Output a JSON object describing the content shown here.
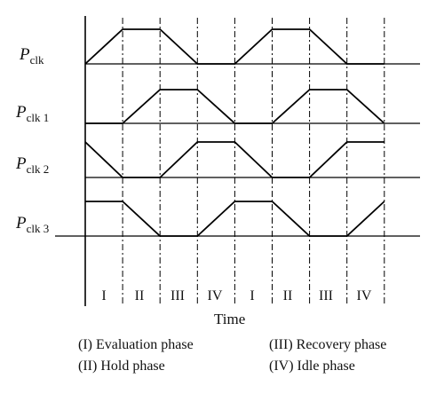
{
  "signals": [
    {
      "base": "P",
      "sub": "clk",
      "levels": [
        0,
        1,
        1,
        0,
        0,
        1,
        1,
        0,
        0
      ]
    },
    {
      "base": "P",
      "sub": "clk 1",
      "levels": [
        0,
        0,
        1,
        1,
        0,
        0,
        1,
        1,
        0
      ]
    },
    {
      "base": "P",
      "sub": "clk 2",
      "levels": [
        1,
        0,
        0,
        1,
        1,
        0,
        0,
        1,
        1
      ]
    },
    {
      "base": "P",
      "sub": "clk 3",
      "levels": [
        1,
        1,
        0,
        0,
        1,
        1,
        0,
        0,
        1
      ]
    }
  ],
  "phases": [
    "I",
    "II",
    "III",
    "IV",
    "I",
    "II",
    "III",
    "IV"
  ],
  "time_axis_label": "Time",
  "legend": [
    "(I) Evaluation phase",
    "(III) Recovery phase",
    "(II) Hold phase",
    "(IV) Idle phase"
  ]
}
